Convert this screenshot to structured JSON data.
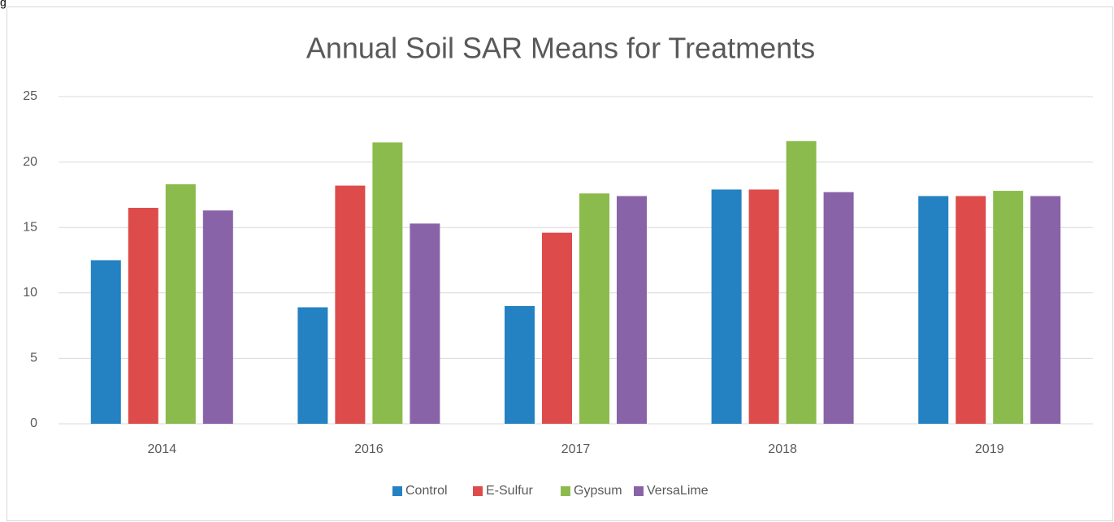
{
  "page_text": "g",
  "chart_data": {
    "type": "bar",
    "title": "Annual Soil SAR Means for Treatments",
    "categories": [
      "2014",
      "2016",
      "2017",
      "2018",
      "2019"
    ],
    "series": [
      {
        "name": "Control",
        "color": "#2481c2",
        "values": [
          12.5,
          8.9,
          9.0,
          17.9,
          17.4
        ]
      },
      {
        "name": "E-Sulfur",
        "color": "#de4b4b",
        "values": [
          16.5,
          18.2,
          14.6,
          17.9,
          17.4
        ]
      },
      {
        "name": "Gypsum",
        "color": "#8cbb4d",
        "values": [
          18.3,
          21.5,
          17.6,
          21.6,
          17.8
        ]
      },
      {
        "name": "VersaLime",
        "color": "#8963a8",
        "values": [
          16.3,
          15.3,
          17.4,
          17.7,
          17.4
        ]
      }
    ],
    "ylim": [
      0,
      25
    ],
    "yticks": [
      0,
      5,
      10,
      15,
      20,
      25
    ],
    "grid": true,
    "legend": "bottom"
  }
}
